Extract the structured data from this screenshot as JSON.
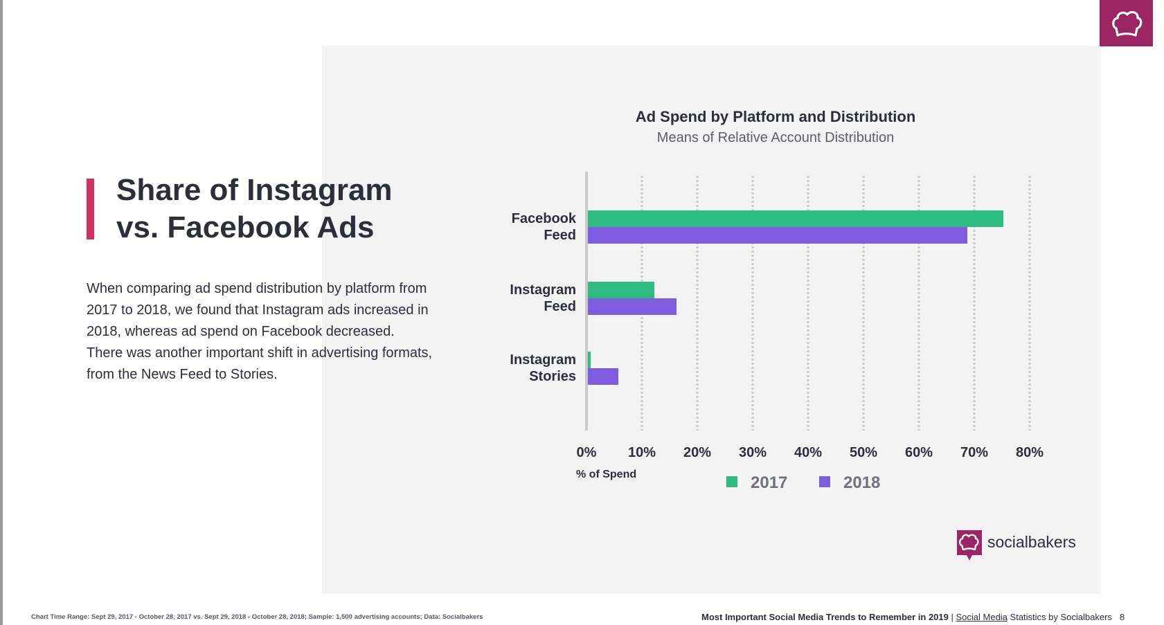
{
  "slide": {
    "heading_line1": "Share of Instagram",
    "heading_line2": "vs. Facebook Ads",
    "body": "When comparing ad spend distribution by platform from 2017 to 2018, we found that Instagram ads increased in 2018, whereas ad spend on Facebook decreased. There was another important shift in advertising formats, from the News Feed to Stories.",
    "brand_name": "socialbakers",
    "footer_left": "Chart Time Range: Sept 29, 2017 - October 28, 2017 vs. Sept 29, 2018 - October 28, 2018; Sample: 1,500 advertising accounts; Data: Socialbakers",
    "footer_right_bold": "Most Important Social Media Trends to Remember in 2019",
    "footer_right_sep": " | ",
    "footer_right_link": "Social Media",
    "footer_right_rest": " Statistics by Socialbakers",
    "page_number": "8"
  },
  "colors": {
    "accent": "#d12f5d",
    "brand": "#9c2563",
    "series_2017": "#2dbb7f",
    "series_2018": "#7d5ce0"
  },
  "chart_data": {
    "type": "bar",
    "orientation": "horizontal",
    "title": "Ad Spend by Platform and Distribution",
    "subtitle": "Means of Relative Account Distribution",
    "xlabel": "% of Spend",
    "categories": [
      [
        "Facebook",
        "Feed"
      ],
      [
        "Instagram",
        "Feed"
      ],
      [
        "Instagram",
        "Stories"
      ]
    ],
    "series": [
      {
        "name": "2017",
        "color": "#2dbb7f",
        "values": [
          75,
          12,
          0.5
        ]
      },
      {
        "name": "2018",
        "color": "#7d5ce0",
        "values": [
          68.5,
          16,
          5.5
        ]
      }
    ],
    "xlim": [
      0,
      80
    ],
    "xticks": [
      "0%",
      "10%",
      "20%",
      "30%",
      "40%",
      "50%",
      "60%",
      "70%",
      "80%"
    ],
    "grid": true,
    "legend_position": "bottom"
  }
}
